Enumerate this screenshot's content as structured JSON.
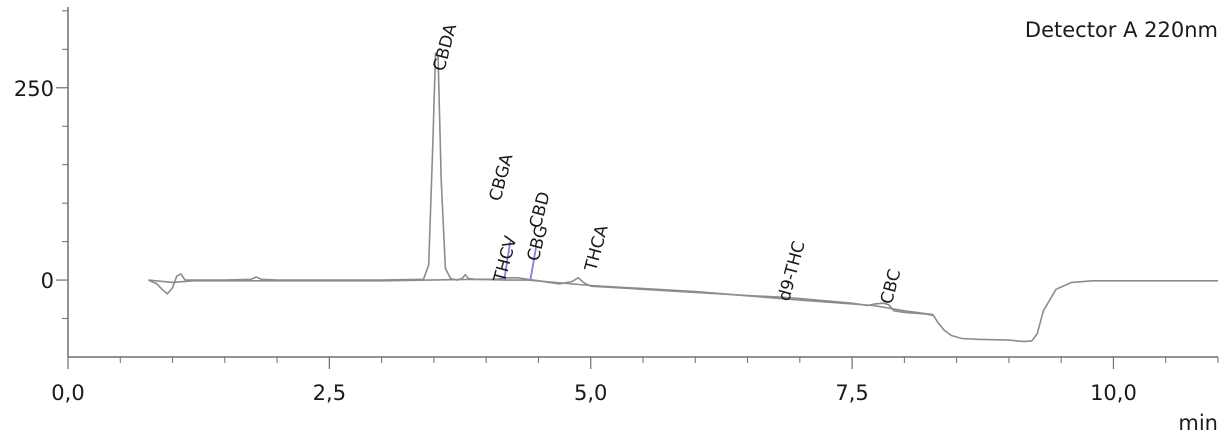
{
  "chart_data": {
    "type": "line",
    "title": "Detector A 220nm",
    "xlabel": "min",
    "ylabel": "",
    "xlim": [
      0,
      11
    ],
    "ylim": [
      -100,
      355
    ],
    "x_ticks": [
      {
        "value": 0,
        "label": "0,0"
      },
      {
        "value": 2.5,
        "label": "2,5"
      },
      {
        "value": 5,
        "label": "5,0"
      },
      {
        "value": 7.5,
        "label": "7,5"
      },
      {
        "value": 10,
        "label": "10,0"
      }
    ],
    "y_ticks": [
      {
        "value": 0,
        "label": "0"
      },
      {
        "value": 250,
        "label": "250"
      }
    ],
    "series": [
      {
        "color": "#8c8c8c",
        "x": [
          0.77,
          0.85,
          0.9,
          0.95,
          1.0,
          1.04,
          1.08,
          1.12,
          1.2,
          1.5,
          1.75,
          1.8,
          1.85,
          2.0,
          2.5,
          3.0,
          3.4,
          3.45,
          3.49,
          3.515,
          3.54,
          3.57,
          3.61,
          3.66,
          3.72,
          3.77,
          3.8,
          3.83,
          3.9,
          4.1,
          4.2,
          4.3,
          4.4,
          4.5,
          4.7,
          4.82,
          4.88,
          4.93,
          5.0,
          5.5,
          6.0,
          6.5,
          6.8,
          7.0,
          7.5,
          7.65,
          7.72,
          7.8,
          7.85,
          7.9,
          8.0,
          8.2,
          8.28,
          8.32,
          8.38,
          8.45,
          8.55,
          8.7,
          9.0,
          9.15,
          9.22,
          9.27,
          9.33,
          9.45,
          9.6,
          9.8,
          11.0
        ],
        "y": [
          0,
          -5,
          -12,
          -18,
          -10,
          5,
          8,
          0,
          0,
          0,
          1,
          4,
          1,
          0,
          0,
          0,
          1,
          20,
          180,
          295,
          290,
          130,
          15,
          2,
          0,
          2,
          7,
          2,
          1,
          1,
          3,
          3,
          1,
          -1,
          -5,
          -2,
          3,
          -3,
          -8,
          -12,
          -16,
          -20,
          -22,
          -24,
          -30,
          -33,
          -31,
          -30,
          -32,
          -40,
          -42,
          -44,
          -46,
          -55,
          -65,
          -72,
          -76,
          -77,
          -78,
          -80,
          -79,
          -70,
          -40,
          -12,
          -3,
          -1,
          -1
        ]
      },
      {
        "color": "#8c8c8c",
        "x": [
          0.77,
          1.0,
          1.2,
          1.5,
          2.0,
          3.0,
          3.9,
          4.2,
          4.4,
          5.0,
          6.0,
          7.0,
          7.7,
          8.0,
          8.28
        ],
        "y": [
          0,
          -3,
          -1,
          -1,
          -1,
          -1,
          1,
          0,
          0,
          -7,
          -15,
          -26,
          -33,
          -40,
          -45
        ]
      }
    ],
    "peaks": [
      {
        "name": "CBDA",
        "time": 3.52
      },
      {
        "name": "THCV",
        "time": 4.1
      },
      {
        "name": "CBGA",
        "time": 4.23
      },
      {
        "name": "CBG",
        "time": 4.42
      },
      {
        "name": "CBD",
        "time": 4.48
      },
      {
        "name": "THCA",
        "time": 4.99
      },
      {
        "name": "d9-THC",
        "time": 6.82
      },
      {
        "name": "CBC",
        "time": 7.8
      }
    ],
    "integration_marks": [
      {
        "peak": "CBGA",
        "color": "#8080e0"
      },
      {
        "peak": "CBD",
        "color": "#8080e0"
      }
    ],
    "grid": false,
    "axis_color": "#6e6e6e"
  }
}
